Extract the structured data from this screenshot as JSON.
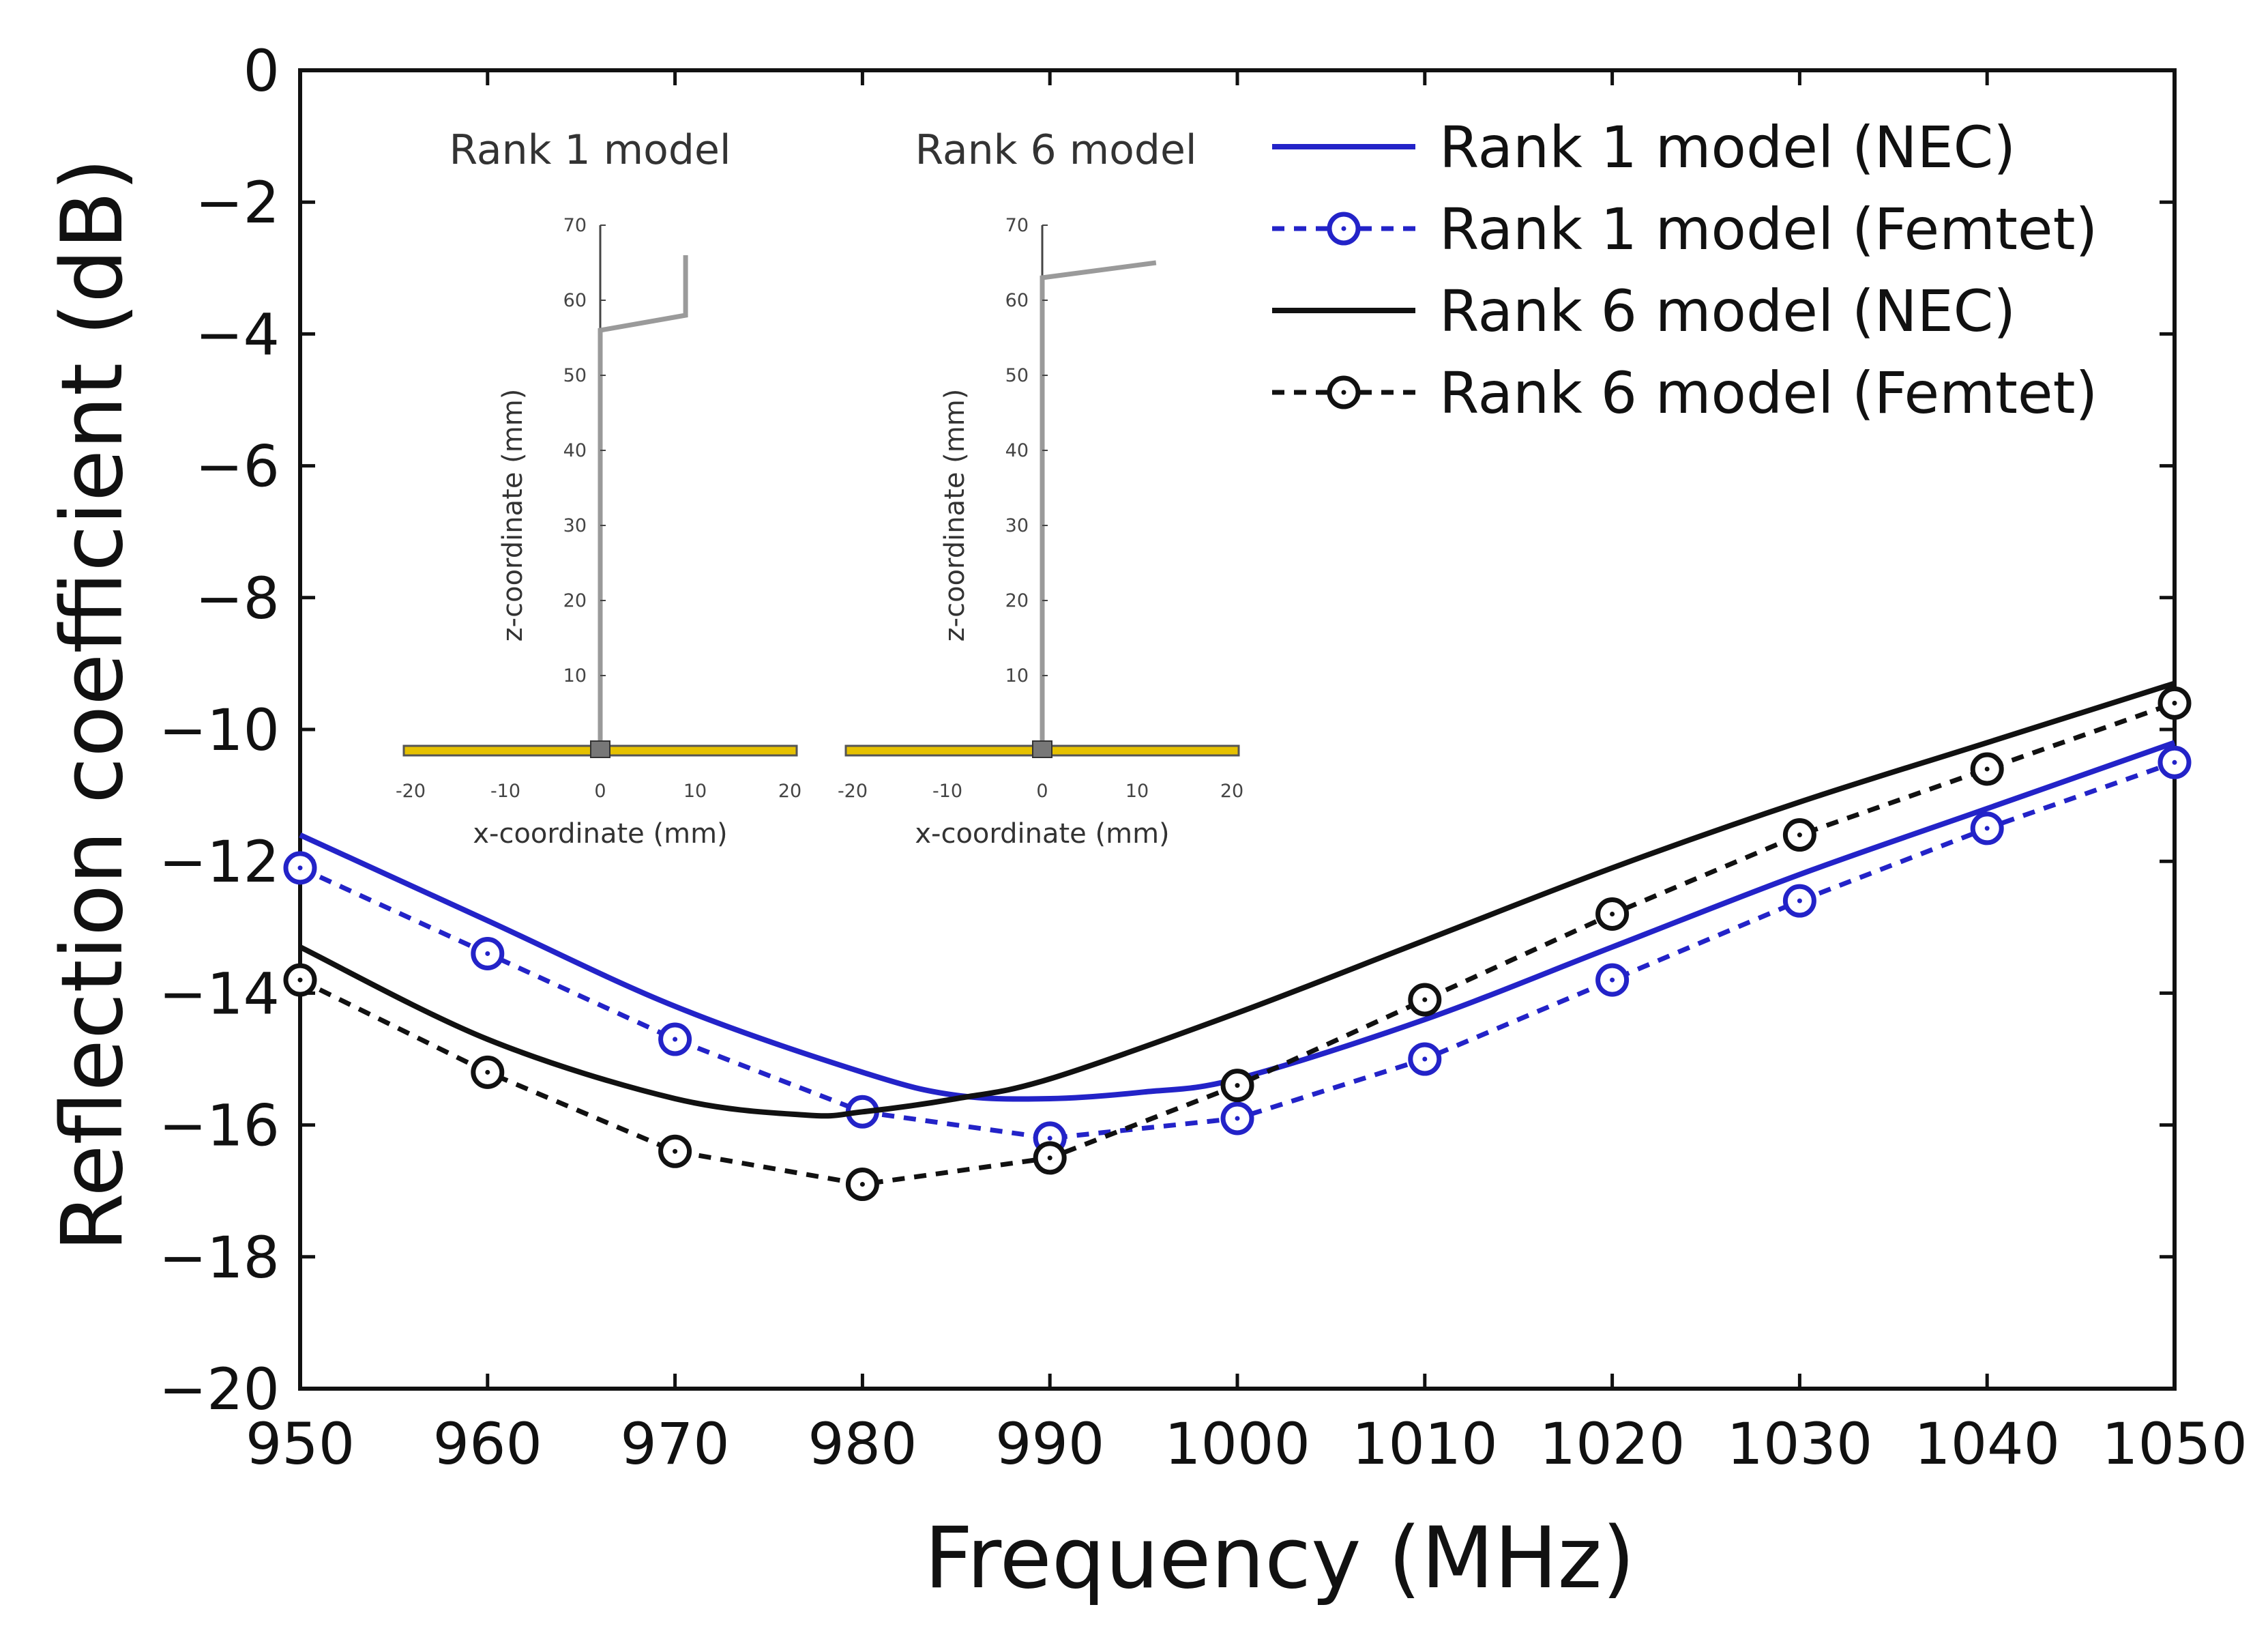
{
  "chart_data": {
    "type": "line",
    "title": "",
    "xlabel": "Frequency (MHz)",
    "ylabel": "Reflection coefficient (dB)",
    "xlim": [
      950,
      1050
    ],
    "ylim": [
      -20,
      0
    ],
    "xticks": [
      950,
      960,
      970,
      980,
      990,
      1000,
      1010,
      1020,
      1030,
      1040,
      1050
    ],
    "yticks": [
      0,
      -2,
      -4,
      -6,
      -8,
      -10,
      -12,
      -14,
      -16,
      -18,
      -20
    ],
    "legend_position": "top-right",
    "colors": {
      "blue": "#2323c8",
      "black": "#111111"
    },
    "series": [
      {
        "name": "Rank 1 model (NEC)",
        "style": "solid",
        "marker": "none",
        "color": "#2323c8",
        "x": [
          950,
          960,
          970,
          980,
          985,
          990,
          995,
          1000,
          1010,
          1020,
          1030,
          1040,
          1050
        ],
        "y": [
          -11.6,
          -12.9,
          -14.2,
          -15.2,
          -15.55,
          -15.6,
          -15.5,
          -15.3,
          -14.4,
          -13.3,
          -12.2,
          -11.2,
          -10.2
        ]
      },
      {
        "name": "Rank 1 model (Femtet)",
        "style": "dashed",
        "marker": "circle",
        "color": "#2323c8",
        "x": [
          950,
          960,
          970,
          980,
          990,
          1000,
          1010,
          1020,
          1030,
          1040,
          1050
        ],
        "y": [
          -12.1,
          -13.4,
          -14.7,
          -15.8,
          -16.2,
          -15.9,
          -15.0,
          -13.8,
          -12.6,
          -11.5,
          -10.5
        ]
      },
      {
        "name": "Rank 6 model (NEC)",
        "style": "solid",
        "marker": "none",
        "color": "#111111",
        "x": [
          950,
          960,
          970,
          977,
          980,
          985,
          990,
          1000,
          1010,
          1020,
          1030,
          1040,
          1050
        ],
        "y": [
          -13.3,
          -14.7,
          -15.6,
          -15.85,
          -15.8,
          -15.6,
          -15.3,
          -14.3,
          -13.2,
          -12.1,
          -11.1,
          -10.2,
          -9.3
        ]
      },
      {
        "name": "Rank 6 model (Femtet)",
        "style": "dashed",
        "marker": "circle",
        "color": "#111111",
        "x": [
          950,
          960,
          970,
          980,
          990,
          1000,
          1010,
          1020,
          1030,
          1040,
          1050
        ],
        "y": [
          -13.8,
          -15.2,
          -16.4,
          -16.9,
          -16.5,
          -15.4,
          -14.1,
          -12.8,
          -11.6,
          -10.6,
          -9.6
        ]
      }
    ],
    "insets": [
      {
        "title": "Rank 1 model",
        "xlabel": "x-coordinate (mm)",
        "ylabel": "z-coordinate (mm)",
        "xticks": [
          -20,
          -10,
          0,
          10,
          20
        ],
        "yticks": [
          10,
          20,
          30,
          40,
          50,
          60,
          70
        ],
        "antenna_path": [
          [
            0,
            0
          ],
          [
            0,
            56
          ],
          [
            9,
            58
          ],
          [
            9,
            66
          ]
        ]
      },
      {
        "title": "Rank 6 model",
        "xlabel": "x-coordinate (mm)",
        "ylabel": "z-coordinate (mm)",
        "xticks": [
          -20,
          -10,
          0,
          10,
          20
        ],
        "yticks": [
          10,
          20,
          30,
          40,
          50,
          60,
          70
        ],
        "antenna_path": [
          [
            0,
            0
          ],
          [
            0,
            63
          ],
          [
            12,
            65
          ]
        ]
      }
    ]
  }
}
